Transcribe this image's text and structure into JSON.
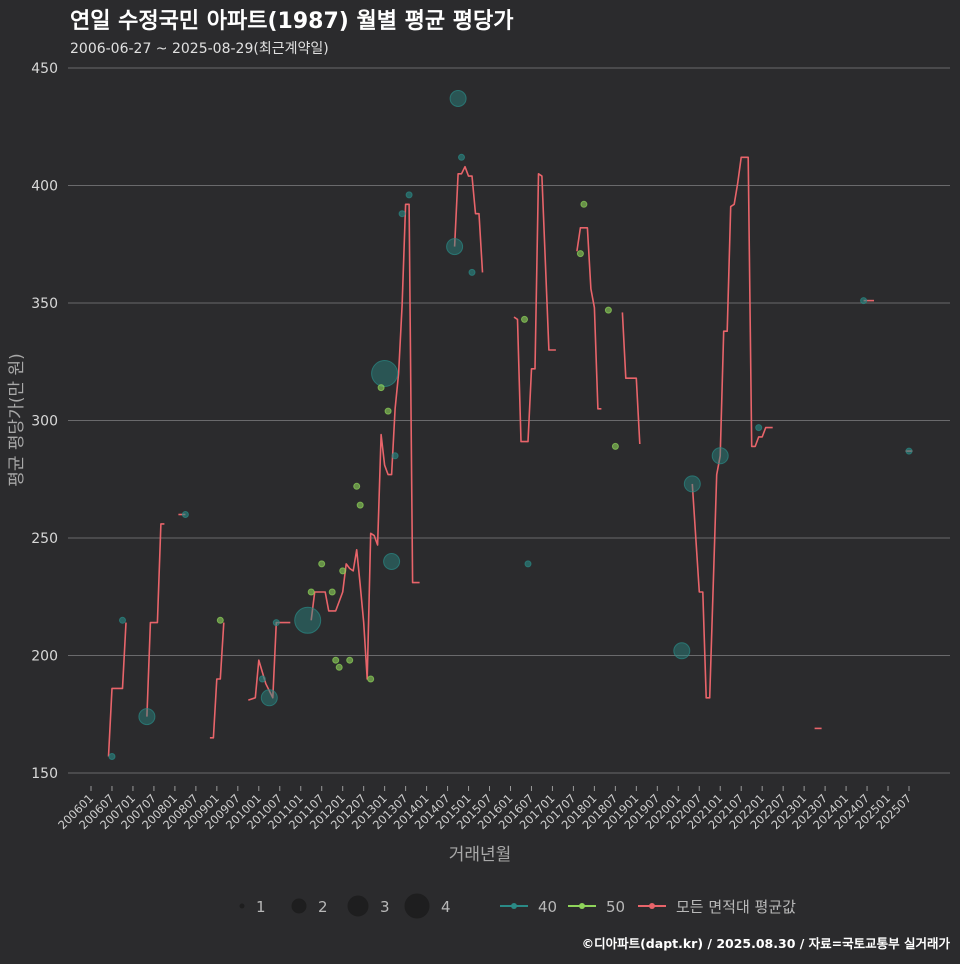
{
  "chart_data": {
    "type": "line",
    "title": "연일 수정국민 아파트(1987) 월별 평균 평당가",
    "subtitle": "2006-06-27 ~ 2025-08-29(최근계약일)",
    "xlabel": "거래년월",
    "ylabel": "평균 평당가(만 원)",
    "ylim": [
      145,
      452
    ],
    "yticks": [
      150,
      200,
      250,
      300,
      350,
      400,
      450
    ],
    "x_range": [
      0,
      241
    ],
    "xticks": [
      {
        "label": "200601",
        "m": 0
      },
      {
        "label": "200607",
        "m": 6
      },
      {
        "label": "200701",
        "m": 12
      },
      {
        "label": "200707",
        "m": 18
      },
      {
        "label": "200801",
        "m": 24
      },
      {
        "label": "200807",
        "m": 30
      },
      {
        "label": "200901",
        "m": 36
      },
      {
        "label": "200907",
        "m": 42
      },
      {
        "label": "201001",
        "m": 48
      },
      {
        "label": "201007",
        "m": 54
      },
      {
        "label": "201101",
        "m": 60
      },
      {
        "label": "201107",
        "m": 66
      },
      {
        "label": "201201",
        "m": 72
      },
      {
        "label": "201207",
        "m": 78
      },
      {
        "label": "201301",
        "m": 84
      },
      {
        "label": "201307",
        "m": 90
      },
      {
        "label": "201401",
        "m": 96
      },
      {
        "label": "201407",
        "m": 102
      },
      {
        "label": "201501",
        "m": 108
      },
      {
        "label": "201507",
        "m": 114
      },
      {
        "label": "201601",
        "m": 120
      },
      {
        "label": "201607",
        "m": 126
      },
      {
        "label": "201701",
        "m": 132
      },
      {
        "label": "201707",
        "m": 138
      },
      {
        "label": "201801",
        "m": 144
      },
      {
        "label": "201807",
        "m": 150
      },
      {
        "label": "201901",
        "m": 156
      },
      {
        "label": "201907",
        "m": 162
      },
      {
        "label": "202001",
        "m": 168
      },
      {
        "label": "202007",
        "m": 174
      },
      {
        "label": "202101",
        "m": 180
      },
      {
        "label": "202107",
        "m": 186
      },
      {
        "label": "202201",
        "m": 192
      },
      {
        "label": "202207",
        "m": 198
      },
      {
        "label": "202301",
        "m": 204
      },
      {
        "label": "202307",
        "m": 210
      },
      {
        "label": "202401",
        "m": 216
      },
      {
        "label": "202407",
        "m": 222
      },
      {
        "label": "202501",
        "m": 228
      },
      {
        "label": "202507",
        "m": 234
      }
    ],
    "line_series": {
      "name": "모든 면적대 평균값",
      "color": "#e8646a",
      "segments": [
        [
          [
            5,
            157
          ],
          [
            6,
            186
          ],
          [
            8,
            186
          ],
          [
            9,
            186
          ],
          [
            10,
            214
          ]
        ],
        [
          [
            16,
            174
          ],
          [
            17,
            214
          ],
          [
            19,
            214
          ],
          [
            20,
            256
          ],
          [
            21,
            256
          ]
        ],
        [
          [
            25,
            260
          ],
          [
            27,
            260
          ]
        ],
        [
          [
            34,
            165
          ],
          [
            35,
            165
          ],
          [
            36,
            190
          ],
          [
            37,
            190
          ],
          [
            38,
            214
          ]
        ],
        [
          [
            45,
            181
          ],
          [
            47,
            182
          ],
          [
            48,
            198
          ],
          [
            49,
            193
          ],
          [
            50,
            188
          ],
          [
            52,
            182
          ],
          [
            53,
            214
          ],
          [
            55,
            214
          ],
          [
            57,
            214
          ]
        ],
        [
          [
            63,
            215
          ],
          [
            64,
            227
          ],
          [
            66,
            227
          ],
          [
            67,
            227
          ],
          [
            68,
            219
          ],
          [
            69,
            219
          ],
          [
            70,
            219
          ],
          [
            72,
            227
          ],
          [
            73,
            239
          ],
          [
            74,
            237
          ],
          [
            75,
            236
          ],
          [
            76,
            245
          ],
          [
            77,
            230
          ],
          [
            78,
            214
          ],
          [
            79,
            190
          ],
          [
            80,
            252
          ],
          [
            81,
            251
          ],
          [
            82,
            247
          ],
          [
            83,
            294
          ],
          [
            84,
            281
          ],
          [
            85,
            277
          ],
          [
            86,
            277
          ],
          [
            87,
            305
          ],
          [
            88,
            320
          ],
          [
            89,
            349
          ],
          [
            90,
            392
          ],
          [
            91,
            392
          ],
          [
            92,
            231
          ],
          [
            94,
            231
          ]
        ],
        [
          [
            104,
            374
          ],
          [
            105,
            405
          ],
          [
            106,
            405
          ],
          [
            107,
            408
          ],
          [
            108,
            404
          ],
          [
            109,
            404
          ],
          [
            110,
            388
          ],
          [
            111,
            388
          ],
          [
            112,
            363
          ]
        ],
        [
          [
            121,
            344
          ],
          [
            122,
            343
          ],
          [
            123,
            291
          ],
          [
            124,
            291
          ],
          [
            125,
            291
          ],
          [
            126,
            322
          ],
          [
            127,
            322
          ],
          [
            128,
            405
          ],
          [
            129,
            404
          ],
          [
            131,
            330
          ],
          [
            132,
            330
          ],
          [
            133,
            330
          ]
        ],
        [
          [
            139,
            372
          ],
          [
            140,
            382
          ],
          [
            141,
            382
          ],
          [
            142,
            382
          ],
          [
            143,
            356
          ],
          [
            144,
            348
          ],
          [
            145,
            305
          ],
          [
            146,
            305
          ]
        ],
        [
          [
            152,
            346
          ],
          [
            153,
            318
          ],
          [
            154,
            318
          ],
          [
            155,
            318
          ],
          [
            156,
            318
          ],
          [
            157,
            290
          ]
        ],
        [
          [
            172,
            273
          ],
          [
            174,
            227
          ],
          [
            175,
            227
          ],
          [
            176,
            182
          ],
          [
            177,
            182
          ],
          [
            179,
            277
          ],
          [
            180,
            285
          ],
          [
            181,
            338
          ],
          [
            182,
            338
          ],
          [
            183,
            391
          ],
          [
            184,
            392
          ],
          [
            185,
            401
          ],
          [
            186,
            412
          ],
          [
            188,
            412
          ],
          [
            189,
            289
          ],
          [
            190,
            289
          ],
          [
            191,
            293
          ],
          [
            192,
            293
          ],
          [
            193,
            297
          ],
          [
            195,
            297
          ]
        ],
        [
          [
            207,
            169
          ],
          [
            209,
            169
          ]
        ],
        [
          [
            221,
            351
          ],
          [
            224,
            351
          ]
        ],
        [
          [
            233,
            287
          ],
          [
            235,
            287
          ]
        ]
      ]
    },
    "scatter_series": [
      {
        "name": "40",
        "color": "#2a8a86",
        "points": [
          [
            6,
            157,
            1
          ],
          [
            9,
            215,
            1
          ],
          [
            16,
            174,
            2
          ],
          [
            27,
            260,
            1
          ],
          [
            49,
            190,
            1
          ],
          [
            51,
            182,
            2
          ],
          [
            53,
            214,
            1
          ],
          [
            62,
            215,
            4
          ],
          [
            86,
            240,
            2
          ],
          [
            84,
            320,
            4
          ],
          [
            89,
            388,
            1
          ],
          [
            91,
            396,
            1
          ],
          [
            87,
            285,
            1
          ],
          [
            104,
            374,
            2
          ],
          [
            105,
            437,
            2
          ],
          [
            106,
            412,
            1
          ],
          [
            109,
            363,
            1
          ],
          [
            125,
            239,
            1
          ],
          [
            169,
            202,
            2
          ],
          [
            172,
            273,
            2
          ],
          [
            180,
            285,
            2
          ],
          [
            191,
            297,
            1
          ],
          [
            221,
            351,
            1
          ],
          [
            234,
            287,
            1
          ]
        ]
      },
      {
        "name": "50",
        "color": "#8fd45a",
        "points": [
          [
            37,
            215,
            1
          ],
          [
            70,
            198,
            1
          ],
          [
            71,
            195,
            1
          ],
          [
            74,
            198,
            1
          ],
          [
            66,
            239,
            1
          ],
          [
            63,
            227,
            1
          ],
          [
            69,
            227,
            1
          ],
          [
            72,
            236,
            1
          ],
          [
            76,
            272,
            1
          ],
          [
            77,
            264,
            1
          ],
          [
            80,
            190,
            1
          ],
          [
            85,
            304,
            1
          ],
          [
            124,
            343,
            1
          ],
          [
            140,
            371,
            1
          ],
          [
            141,
            392,
            1
          ],
          [
            148,
            347,
            1
          ],
          [
            150,
            289,
            1
          ],
          [
            83,
            314,
            1
          ]
        ]
      }
    ],
    "size_legend": {
      "title": "",
      "values": [
        1,
        2,
        3,
        4
      ]
    },
    "color_legend": [
      {
        "label": "40",
        "color": "#2a8a86",
        "kind": "point-line"
      },
      {
        "label": "50",
        "color": "#8fd45a",
        "kind": "point-line"
      },
      {
        "label": "모든 면적대 평균값",
        "color": "#e8646a",
        "kind": "point-line"
      }
    ],
    "grid": true,
    "credit": "©디아파트(dapt.kr) / 2025.08.30 / 자료=국토교통부 실거래가"
  }
}
